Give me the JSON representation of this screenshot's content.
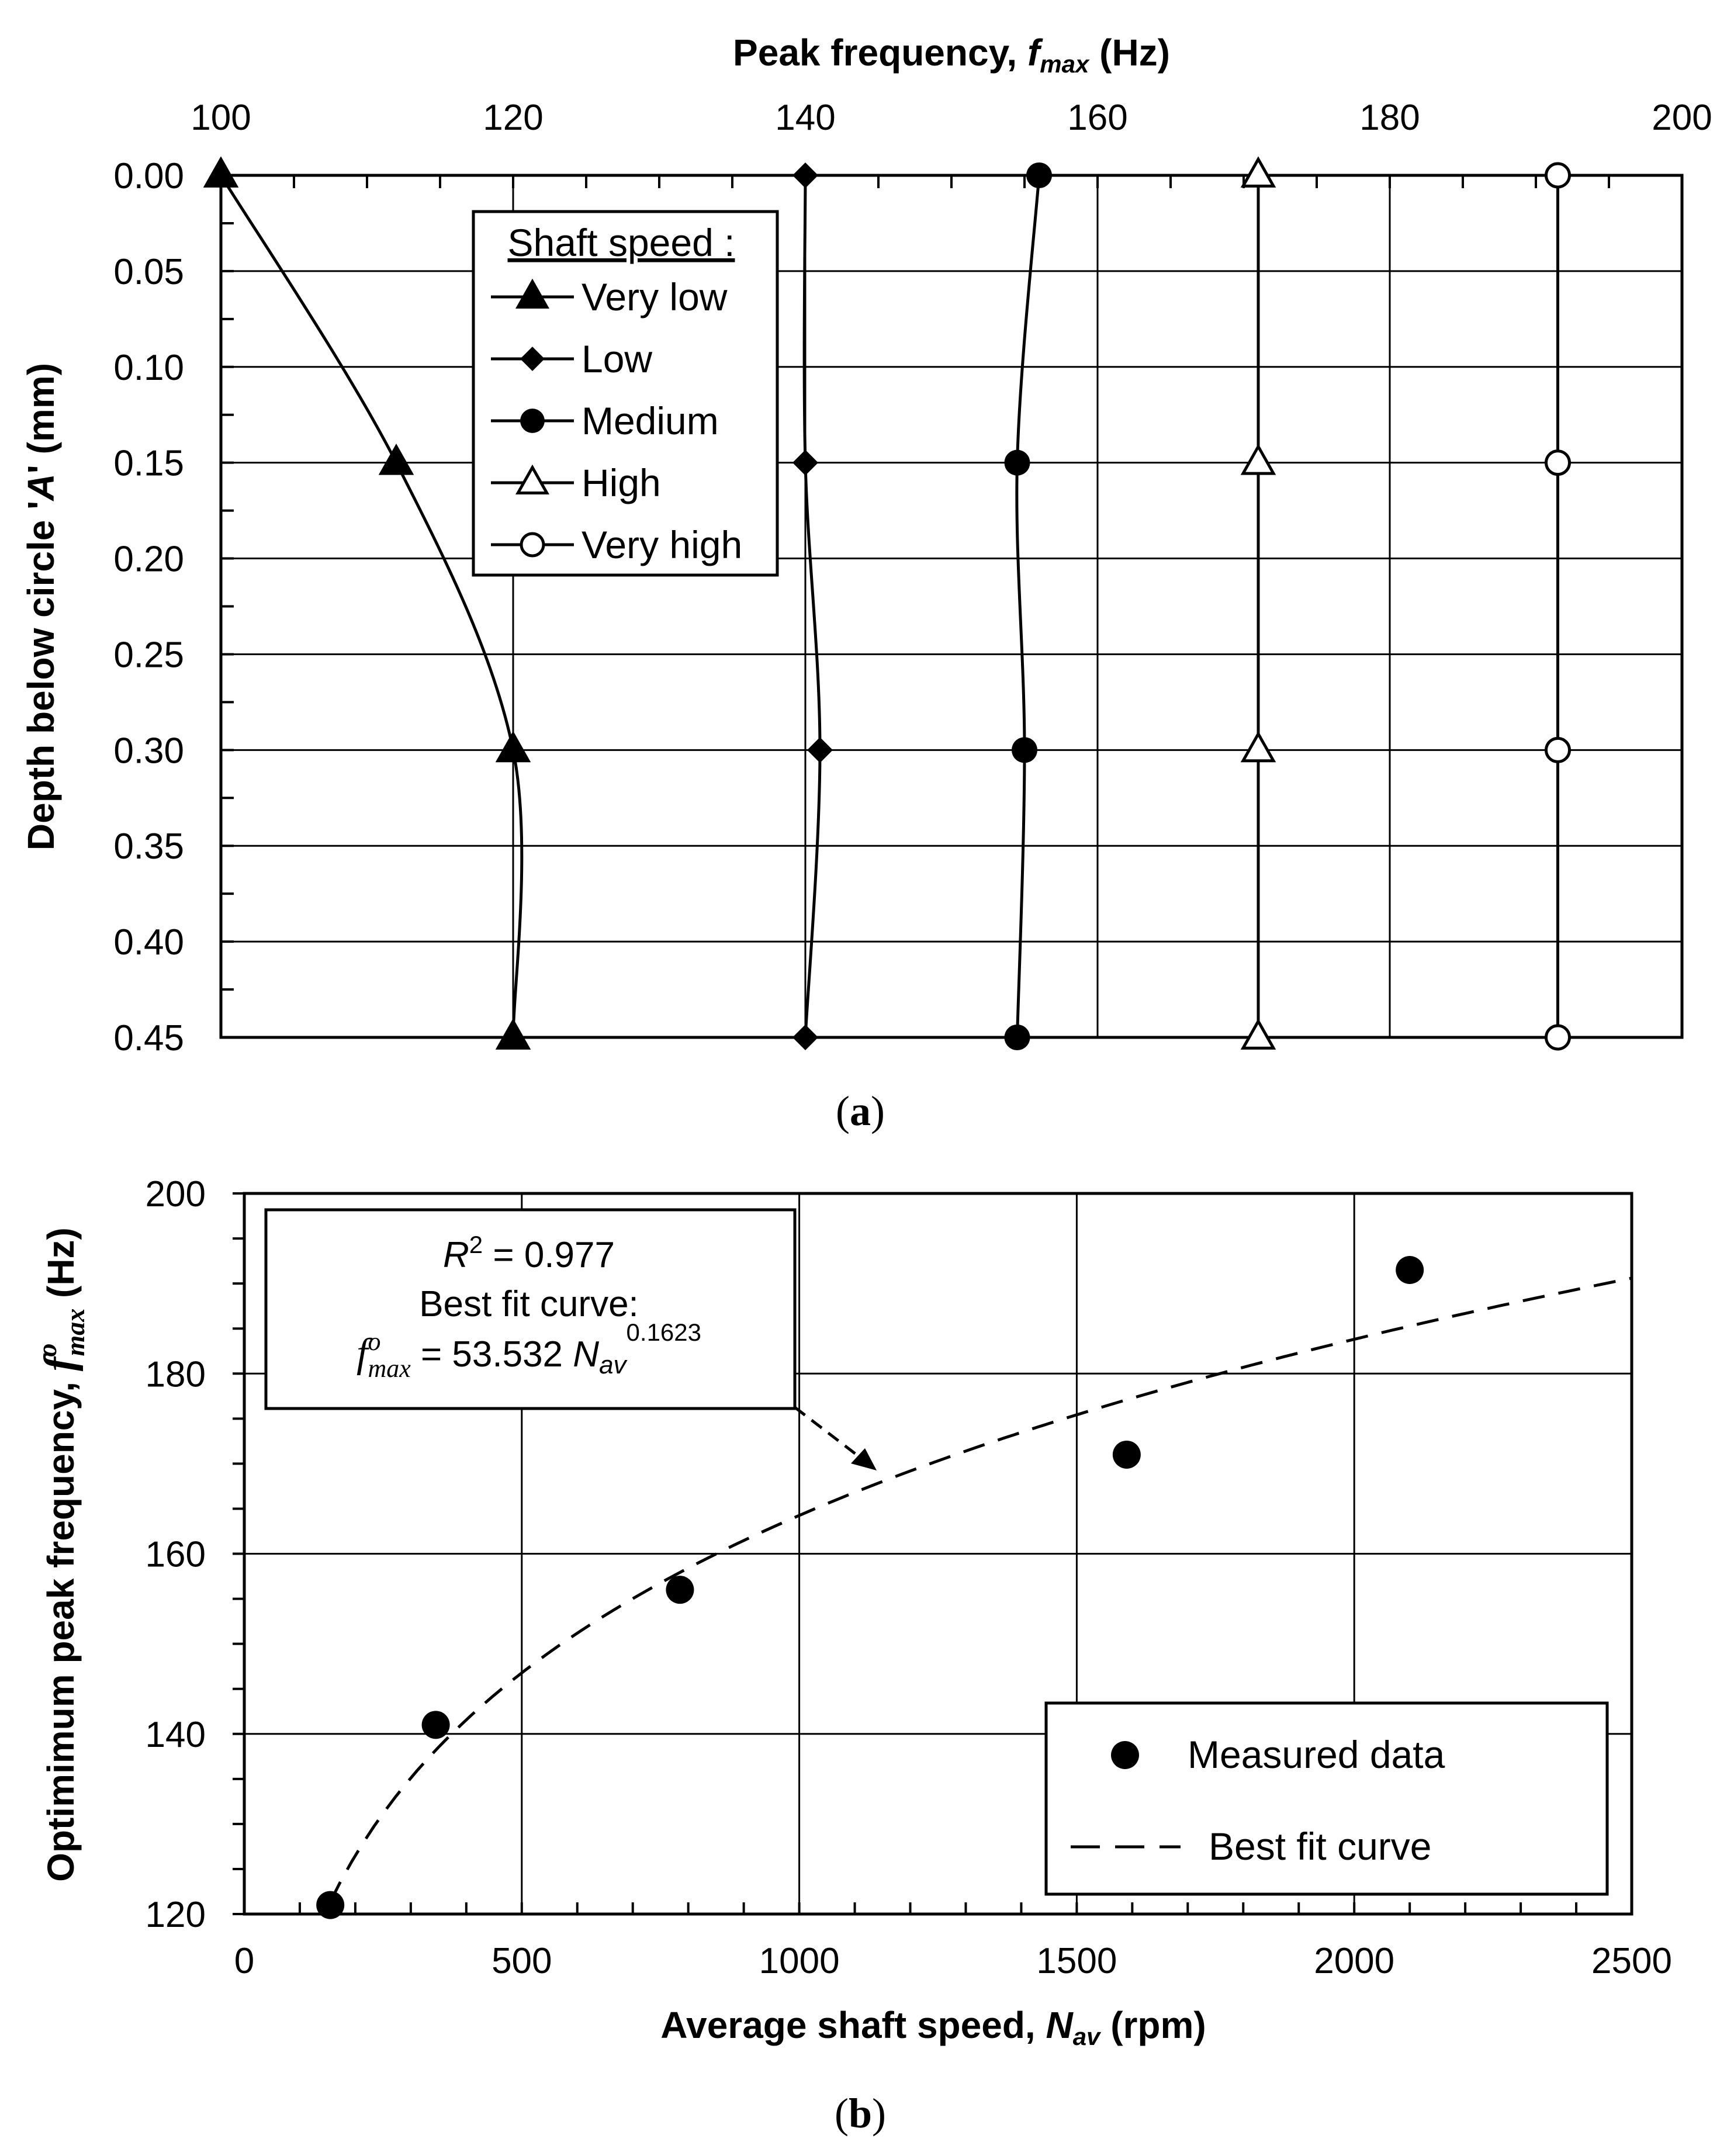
{
  "chart_data": [
    {
      "id": "a",
      "type": "line",
      "caption": "a",
      "xlabel": "Peak frequency, ",
      "xlabel_symbol": "f",
      "xlabel_sub": "max",
      "xlabel_unit": " (Hz)",
      "ylabel": "Depth below circle 'A' (mm)",
      "ylabel_pre": "Depth below circle '",
      "ylabel_ital": "A",
      "ylabel_post": "' (mm)",
      "xlim": [
        100,
        200
      ],
      "ylim": [
        0,
        0.45
      ],
      "xticks": [
        "100",
        "120",
        "140",
        "160",
        "180",
        "200"
      ],
      "yticks": [
        "0.00",
        "0.05",
        "0.10",
        "0.15",
        "0.20",
        "0.25",
        "0.30",
        "0.35",
        "0.40",
        "0.45"
      ],
      "legend_title": "Shaft speed :",
      "legend_position": "top-left",
      "depths": [
        0,
        0.15,
        0.3,
        0.45
      ],
      "series": [
        {
          "name": "Very low",
          "marker": "triangle-filled",
          "values": [
            100,
            112,
            120,
            120
          ]
        },
        {
          "name": "Low",
          "marker": "diamond-filled",
          "values": [
            140,
            140,
            141,
            140
          ]
        },
        {
          "name": "Medium",
          "marker": "circle-filled",
          "values": [
            156,
            154.5,
            155,
            154.5
          ]
        },
        {
          "name": "High",
          "marker": "triangle-open",
          "values": [
            171,
            171,
            171,
            171
          ]
        },
        {
          "name": "Very high",
          "marker": "circle-open",
          "values": [
            191.5,
            191.5,
            191.5,
            191.5
          ]
        }
      ]
    },
    {
      "id": "b",
      "type": "scatter",
      "caption": "b",
      "xlabel": "Average shaft speed, ",
      "xlabel_symbol": "N",
      "xlabel_sub": "av",
      "xlabel_unit": " (rpm)",
      "ylabel": "Optimimum peak frequency, f max o (Hz)",
      "ylabel_pre": "Optimimum peak frequency, ",
      "ylabel_unit": " (Hz)",
      "xlim": [
        0,
        2500
      ],
      "ylim": [
        120,
        200
      ],
      "xticks": [
        "0",
        "500",
        "1000",
        "1500",
        "2000",
        "2500"
      ],
      "yticks": [
        "120",
        "140",
        "160",
        "180",
        "200"
      ],
      "measured": {
        "name": "Measured data",
        "x": [
          155,
          345,
          785,
          1590,
          2100
        ],
        "y": [
          121,
          141,
          156,
          171,
          191.5
        ]
      },
      "fit": {
        "name": "Best fit curve",
        "coefficient": 53.532,
        "exponent": 0.1623,
        "x_start": 155,
        "x_end": 2500
      },
      "annotation": {
        "r2_label": "R",
        "r2_sup": "2",
        "r2_value": " = 0.977",
        "best_fit_label": "Best fit curve:",
        "eq_f": "f",
        "eq_sup": "o",
        "eq_sub": "max",
        "eq_rhs": " = 53.532 ",
        "eq_n": "N",
        "eq_n_sub": "av",
        "eq_exp": "0.1623"
      },
      "legend_position": "bottom-right"
    }
  ]
}
